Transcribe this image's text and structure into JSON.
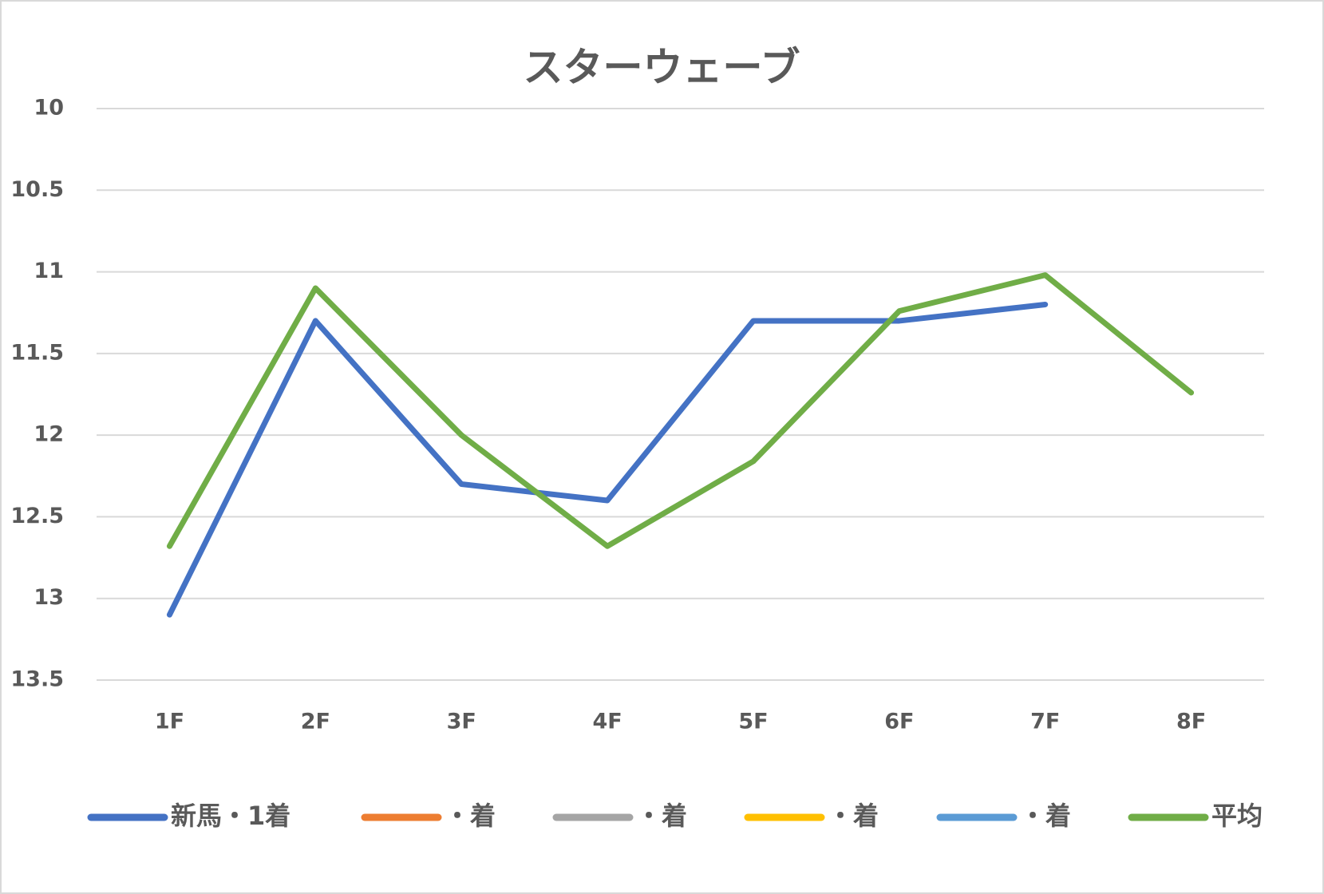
{
  "chart_data": {
    "type": "line",
    "title": "スターウェーブ",
    "categories": [
      "1F",
      "2F",
      "3F",
      "4F",
      "5F",
      "6F",
      "7F",
      "8F"
    ],
    "series": [
      {
        "name": "新馬・1着",
        "color": "#4472c4",
        "values": [
          13.1,
          11.3,
          12.3,
          12.4,
          11.3,
          11.3,
          11.2,
          null
        ]
      },
      {
        "name": "・着",
        "color": "#ed7d31",
        "values": [
          null,
          null,
          null,
          null,
          null,
          null,
          null,
          null
        ]
      },
      {
        "name": "・着",
        "color": "#a5a5a5",
        "values": [
          null,
          null,
          null,
          null,
          null,
          null,
          null,
          null
        ]
      },
      {
        "name": "・着",
        "color": "#ffc000",
        "values": [
          null,
          null,
          null,
          null,
          null,
          null,
          null,
          null
        ]
      },
      {
        "name": "・着",
        "color": "#5b9bd5",
        "values": [
          null,
          null,
          null,
          null,
          null,
          null,
          null,
          null
        ]
      },
      {
        "name": "平均",
        "color": "#70ad47",
        "values": [
          12.68,
          11.1,
          12.0,
          12.68,
          12.16,
          11.24,
          11.02,
          11.74
        ]
      }
    ],
    "ylim": [
      10,
      13.5
    ],
    "yticks": [
      10,
      10.5,
      11,
      11.5,
      12,
      12.5,
      13,
      13.5
    ],
    "y_inverted": true,
    "grid": true,
    "legend": "bottom"
  }
}
